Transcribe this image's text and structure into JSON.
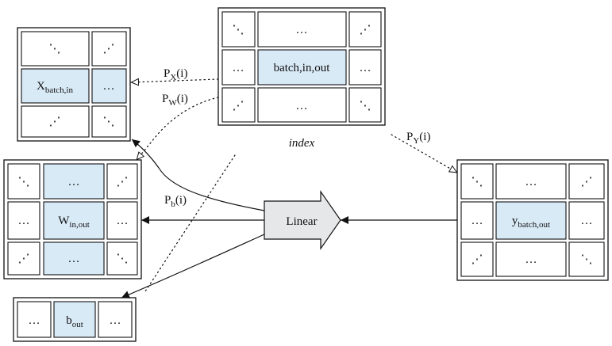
{
  "diagram": {
    "operator": {
      "label": "Linear"
    },
    "index_caption": "index",
    "ellipsis": "…",
    "diag_down": "⋱",
    "diag_up": "⋰",
    "tensors": {
      "index": {
        "center_main": "batch,in,out"
      },
      "x": {
        "center_base": "X",
        "center_sub": "batch,in"
      },
      "w": {
        "center_base": "W",
        "center_sub": "in,out"
      },
      "y": {
        "center_base": "y",
        "center_sub": "batch,out"
      },
      "b": {
        "center_base": "b",
        "center_sub": "out"
      }
    },
    "projections": {
      "px": {
        "base": "P",
        "sub": "X",
        "arg": "(i)"
      },
      "pw": {
        "base": "P",
        "sub": "W",
        "arg": "(i)"
      },
      "pb": {
        "base": "P",
        "sub": "b",
        "arg": "(i)"
      },
      "py": {
        "base": "P",
        "sub": "Y",
        "arg": "(i)"
      }
    },
    "colors": {
      "highlight": "#d9eaf7",
      "operator_fill": "#e6e7e8",
      "stroke": "#111111"
    }
  }
}
